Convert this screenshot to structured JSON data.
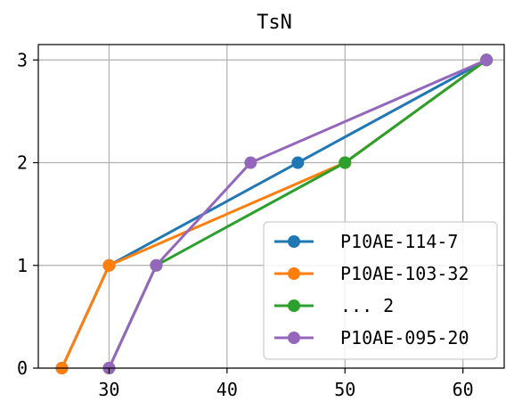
{
  "chart_data": {
    "type": "line",
    "title": "TsN",
    "xlabel": "",
    "ylabel": "",
    "xlim": [
      24,
      63.5
    ],
    "ylim": [
      0,
      3.15
    ],
    "xticks": [
      30,
      40,
      50,
      60
    ],
    "yticks": [
      0,
      1,
      2,
      3
    ],
    "grid": true,
    "legend_position": "lower-right",
    "series": [
      {
        "name": "P10AE-114-7",
        "color": "#1f77b4",
        "x": [
          26,
          30,
          46,
          62
        ],
        "y": [
          0,
          1,
          2,
          3
        ]
      },
      {
        "name": "P10AE-103-32",
        "color": "#ff7f0e",
        "x": [
          26,
          30,
          50,
          62
        ],
        "y": [
          0,
          1,
          2,
          3
        ]
      },
      {
        "name": "... 2",
        "color": "#2ca02c",
        "x": [
          30,
          34,
          50,
          62
        ],
        "y": [
          0,
          1,
          2,
          3
        ]
      },
      {
        "name": "P10AE-095-20",
        "color": "#9467bd",
        "x": [
          30,
          34,
          42,
          62
        ],
        "y": [
          0,
          1,
          2,
          3
        ]
      }
    ]
  }
}
